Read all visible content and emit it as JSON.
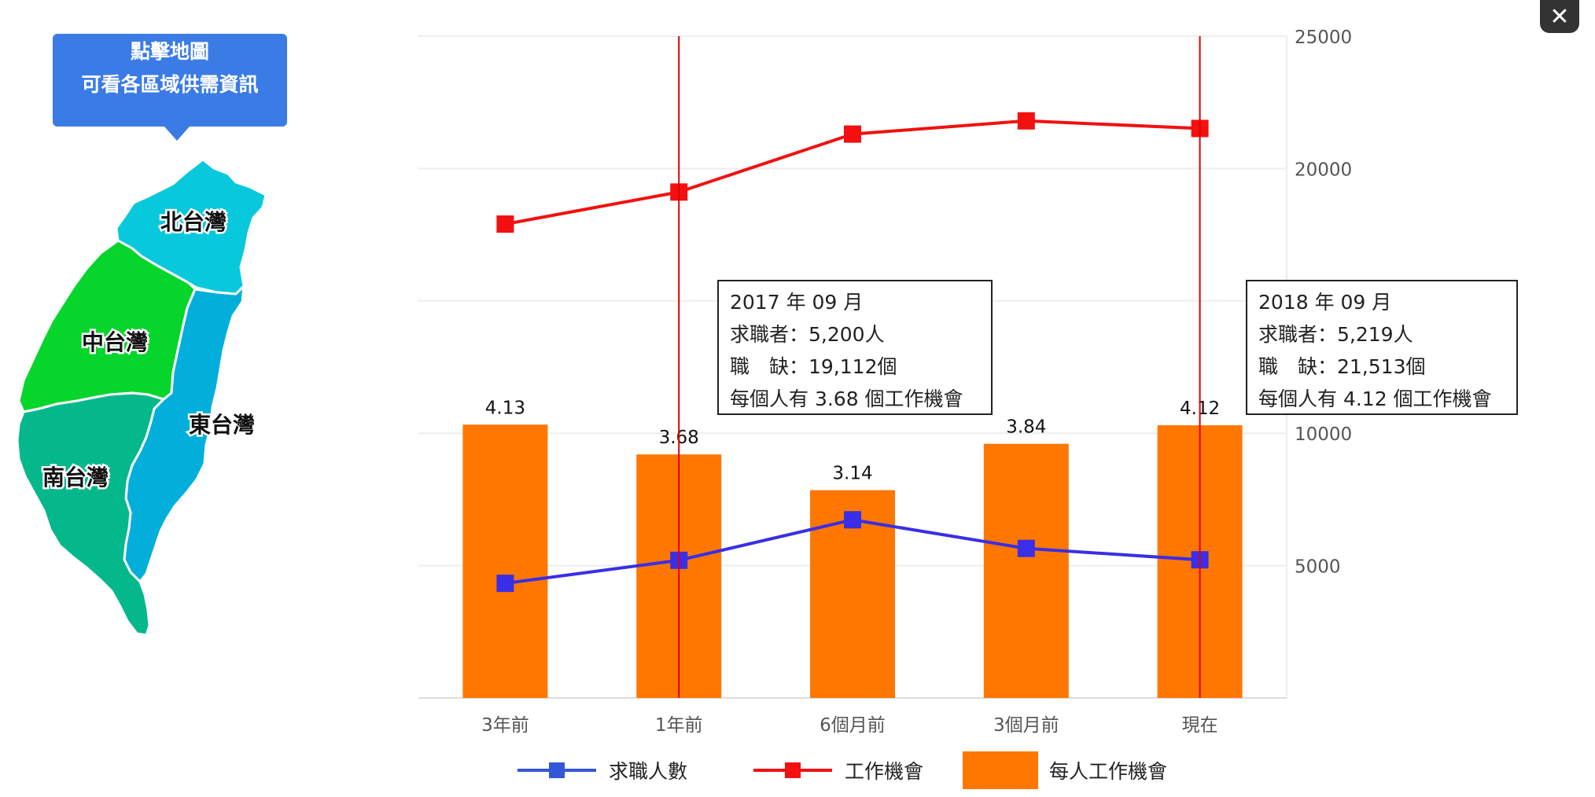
{
  "close_icon": "close-icon",
  "hint": {
    "line1": "點擊地圖",
    "line2": "可看各區域供需資訊"
  },
  "map": {
    "regions": [
      {
        "label": "北台灣",
        "color": "#08c8dc"
      },
      {
        "label": "中台灣",
        "color": "#06d62c"
      },
      {
        "label": "東台灣",
        "color": "#02afdb"
      },
      {
        "label": "南台灣",
        "color": "#04b88c"
      }
    ]
  },
  "tooltips": [
    {
      "title": "2017 年 09 月",
      "seekers": "求職者：5,200人",
      "jobs": "職　缺：19,112個",
      "ratio": "每個人有 3.68 個工作機會"
    },
    {
      "title": "2018 年 09 月",
      "seekers": "求職者：5,219人",
      "jobs": "職　缺：21,513個",
      "ratio": "每個人有 4.12 個工作機會"
    }
  ],
  "legend": {
    "seekers": "求職人數",
    "jobs": "工作機會",
    "ratio": "每人工作機會"
  },
  "colors": {
    "seekers": "#3a2ee6",
    "seekers_legend": "#3456d8",
    "jobs": "#f21010",
    "ratio": "#ff7700",
    "grid": "#eeeeee",
    "axis": "#dddddd"
  },
  "chart_data": {
    "type": "bar",
    "categories": [
      "3年前",
      "1年前",
      "6個月前",
      "3個月前",
      "現在"
    ],
    "series": [
      {
        "name": "每人工作機會",
        "type": "bar",
        "values": [
          4.13,
          3.68,
          3.14,
          3.84,
          4.12
        ],
        "data_labels": [
          "4.13",
          "3.68",
          "3.14",
          "3.84",
          "4.12"
        ]
      },
      {
        "name": "工作機會",
        "type": "line",
        "values": [
          17900,
          19112,
          21300,
          21800,
          21513
        ]
      },
      {
        "name": "求職人數",
        "type": "line",
        "values": [
          4330,
          5200,
          6730,
          5650,
          5219
        ]
      }
    ],
    "y_right": {
      "ticks": [
        5000,
        10000,
        20000,
        25000
      ],
      "tick_labels": [
        "5000",
        "10000",
        "20000",
        "25000"
      ],
      "range": [
        0,
        25000
      ]
    },
    "highlighted_categories": [
      "1年前",
      "現在"
    ],
    "legend_position": "bottom",
    "grid": true
  }
}
